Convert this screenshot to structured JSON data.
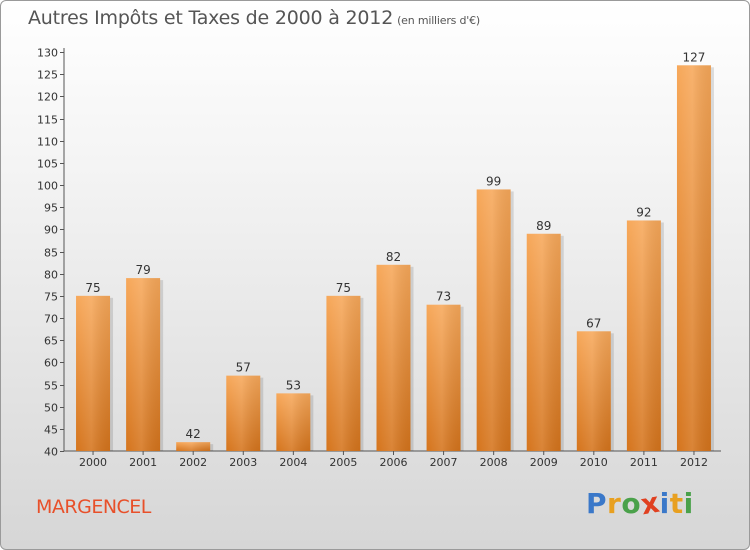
{
  "header": {
    "title": "Autres Impôts et Taxes de 2000 à 2012",
    "subtitle": "(en milliers d'€)"
  },
  "footer": {
    "commune": "MARGENCEL",
    "logo_letters": [
      {
        "ch": "P",
        "color": "#3a78c9"
      },
      {
        "ch": "r",
        "color": "#e8a020"
      },
      {
        "ch": "o",
        "color": "#4aa14a"
      },
      {
        "ch": "x",
        "color": "#e04020"
      },
      {
        "ch": "i",
        "color": "#3a78c9"
      },
      {
        "ch": "t",
        "color": "#e8a020"
      },
      {
        "ch": "i",
        "color": "#4aa14a"
      }
    ]
  },
  "chart_data": {
    "type": "bar",
    "title": "Autres Impôts et Taxes de 2000 à 2012",
    "subtitle": "(en milliers d'€)",
    "categories": [
      "2000",
      "2001",
      "2002",
      "2003",
      "2004",
      "2005",
      "2006",
      "2007",
      "2008",
      "2009",
      "2010",
      "2011",
      "2012"
    ],
    "values": [
      75,
      79,
      42,
      57,
      53,
      75,
      82,
      73,
      99,
      89,
      67,
      92,
      127
    ],
    "ylim": [
      40,
      130
    ],
    "yticks": [
      40,
      45,
      50,
      55,
      60,
      65,
      70,
      75,
      80,
      85,
      90,
      95,
      100,
      105,
      110,
      115,
      120,
      125,
      130
    ],
    "grid": false,
    "bar_color_top": "#f7a85a",
    "bar_color_bottom": "#d5741c"
  }
}
